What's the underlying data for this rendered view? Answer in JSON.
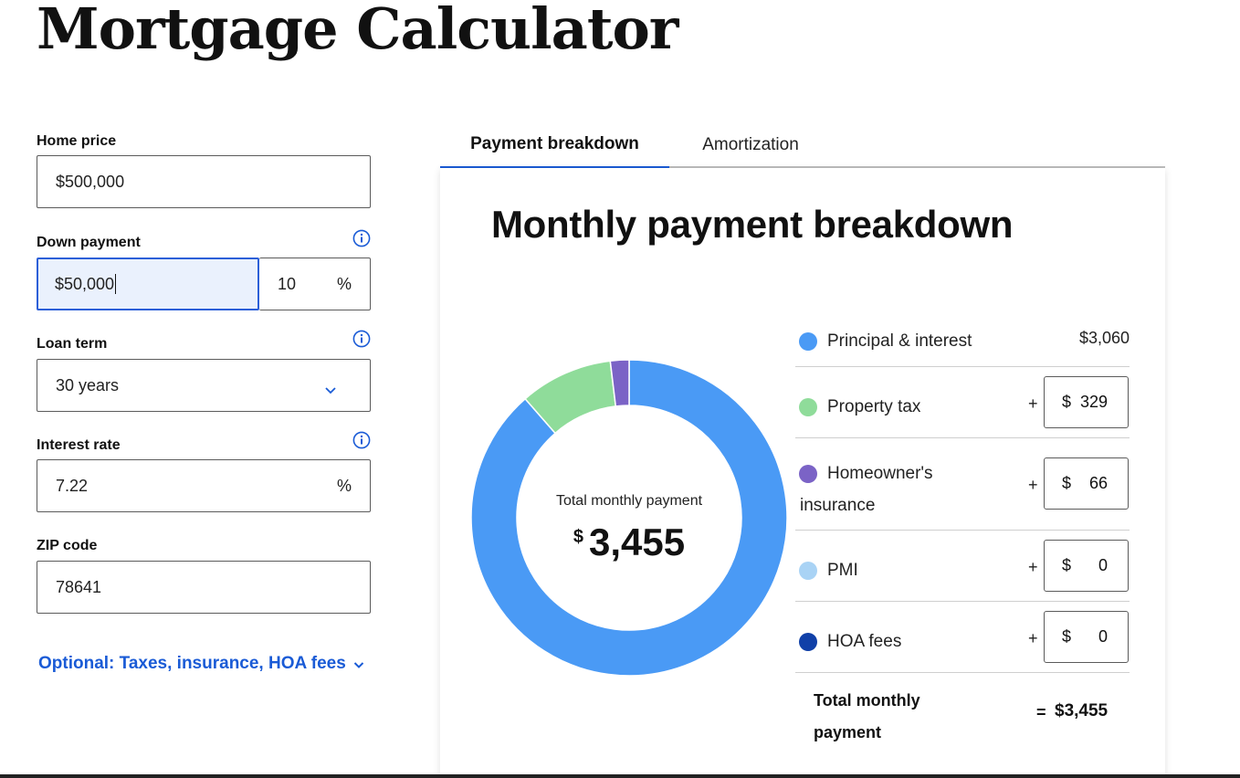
{
  "page_title": "Mortgage Calculator",
  "form": {
    "home_price": {
      "label": "Home price",
      "value": "$500,000"
    },
    "down_payment": {
      "label": "Down payment",
      "amount": "$50,000",
      "percent": "10",
      "percent_symbol": "%"
    },
    "loan_term": {
      "label": "Loan term",
      "value": "30 years"
    },
    "interest_rate": {
      "label": "Interest rate",
      "value": "7.22",
      "percent_symbol": "%"
    },
    "zip_code": {
      "label": "ZIP code",
      "value": "78641"
    },
    "optional_link": "Optional: Taxes, insurance, HOA fees"
  },
  "tabs": [
    {
      "label": "Payment breakdown",
      "active": true
    },
    {
      "label": "Amortization",
      "active": false
    }
  ],
  "breakdown": {
    "title": "Monthly payment breakdown",
    "center_label": "Total monthly payment",
    "center_currency": "$",
    "center_value": "3,455",
    "items": [
      {
        "label": "Principal & interest",
        "amount": "$3,060",
        "value": 3060,
        "color": "#4a9af5"
      },
      {
        "label": "Property tax",
        "prefix": "+",
        "currency": "$",
        "amount": "329",
        "value": 329,
        "color": "#8fdc9a"
      },
      {
        "label": "Homeowner's insurance",
        "prefix": "+",
        "currency": "$",
        "amount": "66",
        "value": 66,
        "color": "#7b63c6"
      },
      {
        "label": "PMI",
        "prefix": "+",
        "currency": "$",
        "amount": "0",
        "value": 0,
        "color": "#a9d3f5"
      },
      {
        "label": "HOA fees",
        "prefix": "+",
        "currency": "$",
        "amount": "0",
        "value": 0,
        "color": "#1040a8"
      }
    ],
    "total": {
      "label": "Total monthly payment",
      "eq": "=",
      "amount": "$3,455"
    }
  }
}
